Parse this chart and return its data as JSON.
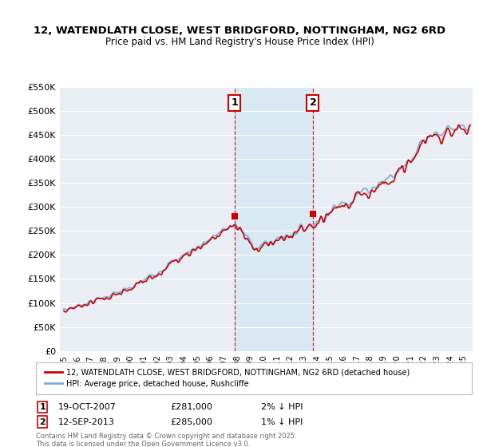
{
  "title": "12, WATENDLATH CLOSE, WEST BRIDGFORD, NOTTINGHAM, NG2 6RD",
  "subtitle": "Price paid vs. HM Land Registry's House Price Index (HPI)",
  "legend_line1": "12, WATENDLATH CLOSE, WEST BRIDGFORD, NOTTINGHAM, NG2 6RD (detached house)",
  "legend_line2": "HPI: Average price, detached house, Rushcliffe",
  "footnote": "Contains HM Land Registry data © Crown copyright and database right 2025.\nThis data is licensed under the Open Government Licence v3.0.",
  "sale1_label": "1",
  "sale1_date": "19-OCT-2007",
  "sale1_price": "£281,000",
  "sale1_hpi": "2% ↓ HPI",
  "sale1_year": 2007.8,
  "sale1_value": 281000,
  "sale2_label": "2",
  "sale2_date": "12-SEP-2013",
  "sale2_price": "£285,000",
  "sale2_hpi": "1% ↓ HPI",
  "sale2_year": 2013.7,
  "sale2_value": 285000,
  "ylim": [
    0,
    550000
  ],
  "yticks": [
    0,
    50000,
    100000,
    150000,
    200000,
    250000,
    300000,
    350000,
    400000,
    450000,
    500000,
    550000
  ],
  "xlim_left": 1994.7,
  "xlim_right": 2025.7,
  "background_color": "#ffffff",
  "plot_bg_color": "#e8eef4",
  "grid_color": "#ffffff",
  "line_red": "#cc0000",
  "line_blue": "#7aaed6",
  "shade_color": "#d4e8f5",
  "shade_alpha": 0.7
}
